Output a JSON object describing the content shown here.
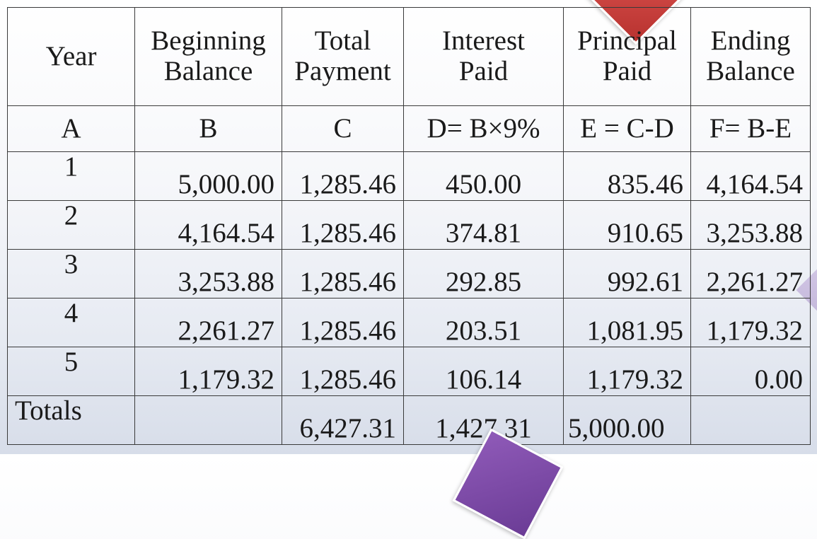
{
  "headers": [
    {
      "line1": "Year",
      "line2": ""
    },
    {
      "line1": "Beginning",
      "line2": "Balance"
    },
    {
      "line1": "Total",
      "line2": "Payment"
    },
    {
      "line1": "Interest",
      "line2": "Paid"
    },
    {
      "line1": "Principal",
      "line2": "Paid"
    },
    {
      "line1": "Ending",
      "line2": "Balance"
    }
  ],
  "labels": [
    "A",
    "B",
    "C",
    "D= B×9%",
    "E = C-D",
    "F= B-E"
  ],
  "rows": [
    {
      "year": "1",
      "beginning": "5,000.00",
      "payment": "1,285.46",
      "interest": "450.00",
      "principal": "835.46",
      "ending": "4,164.54"
    },
    {
      "year": "2",
      "beginning": "4,164.54",
      "payment": "1,285.46",
      "interest": "374.81",
      "principal": "910.65",
      "ending": "3,253.88"
    },
    {
      "year": "3",
      "beginning": "3,253.88",
      "payment": "1,285.46",
      "interest": "292.85",
      "principal": "992.61",
      "ending": "2,261.27"
    },
    {
      "year": "4",
      "beginning": "2,261.27",
      "payment": "1,285.46",
      "interest": "203.51",
      "principal": "1,081.95",
      "ending": "1,179.32"
    },
    {
      "year": "5",
      "beginning": "1,179.32",
      "payment": "1,285.46",
      "interest": "106.14",
      "principal": "1,179.32",
      "ending": "0.00"
    }
  ],
  "totals": {
    "label": "Totals",
    "beginning": "",
    "payment": "6,427.31",
    "interest": "1,427.31",
    "principal": "5,000.00",
    "ending": ""
  },
  "colors": {
    "top_shape": "#c9403c",
    "bottom_shape": "#7b4aa6",
    "border": "#3a3a3a"
  }
}
